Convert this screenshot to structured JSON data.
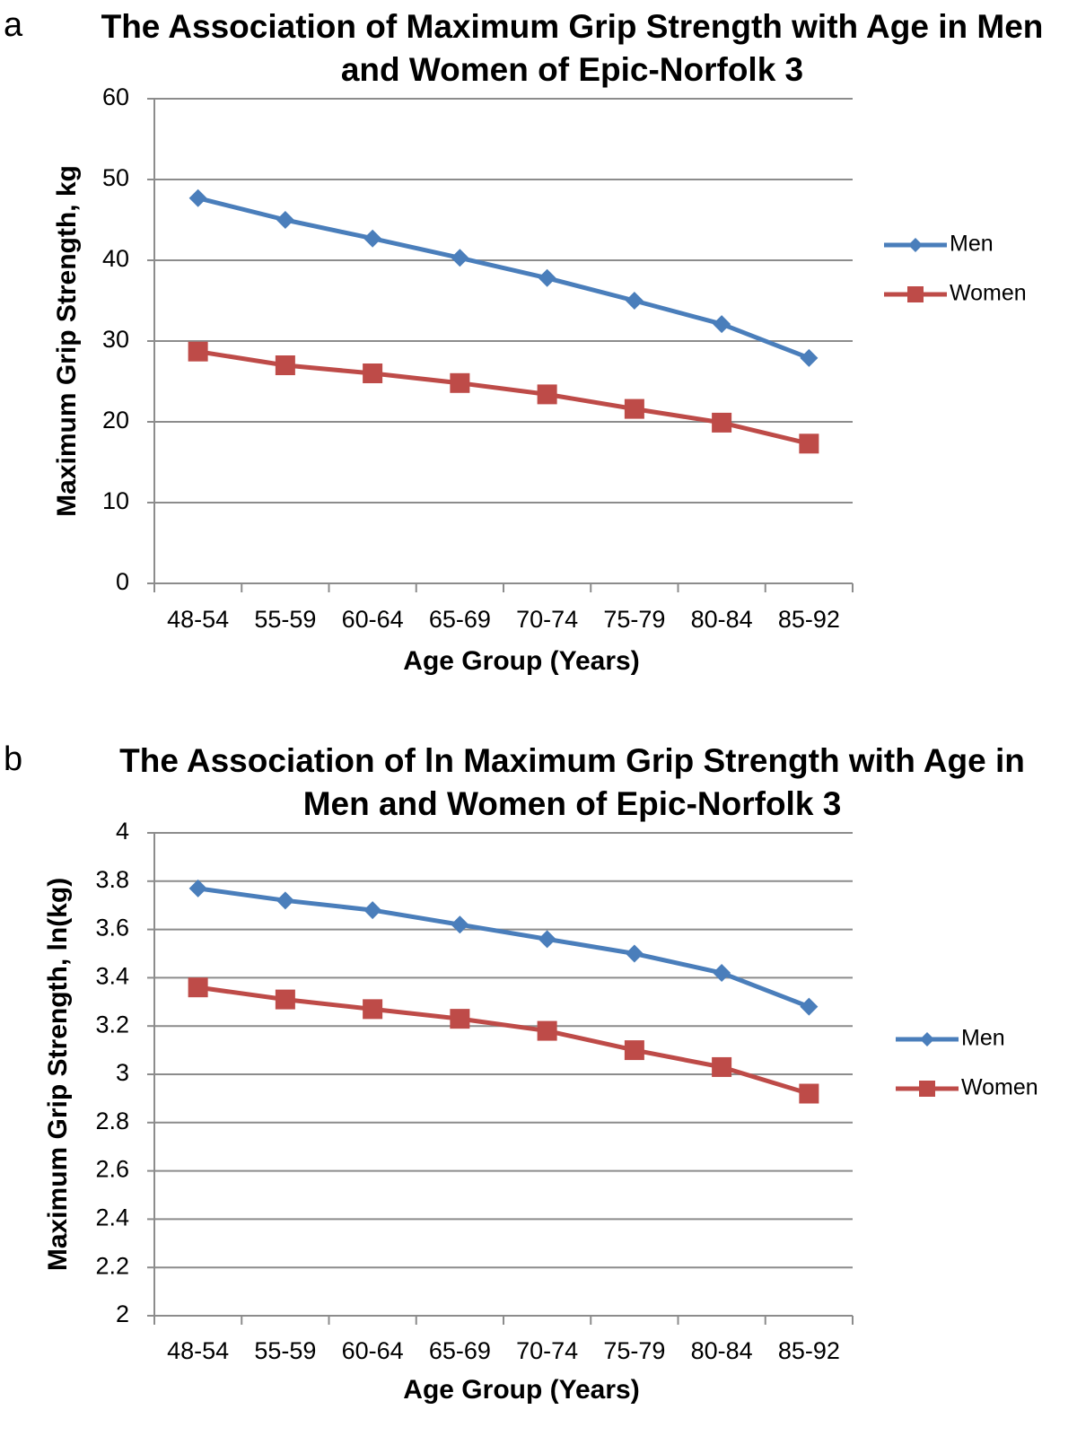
{
  "chart_data": [
    {
      "type": "line",
      "panel": "a",
      "title": "The Association of Maximum Grip Strength with Age in Men and Women of Epic-Norfolk  3",
      "x_label": "Age Group (Years)",
      "y_label": "Maximum Grip Strength, kg",
      "categories": [
        "48-54",
        "55-59",
        "60-64",
        "65-69",
        "70-74",
        "75-79",
        "80-84",
        "85-92"
      ],
      "series": [
        {
          "name": "Men",
          "color": "#4a7ebb",
          "marker": "diamond",
          "values": [
            47.7,
            45.0,
            42.7,
            40.3,
            37.8,
            35.0,
            32.1,
            27.9
          ]
        },
        {
          "name": "Women",
          "color": "#be4b48",
          "marker": "square",
          "values": [
            28.7,
            27.0,
            26.0,
            24.8,
            23.4,
            21.6,
            19.9,
            17.3
          ]
        }
      ],
      "ylim": [
        0,
        60
      ],
      "yticks": [
        0,
        10,
        20,
        30,
        40,
        50,
        60
      ],
      "grid": true,
      "legend": "right"
    },
    {
      "type": "line",
      "panel": "b",
      "title": "The Association of ln Maximum Grip Strength with Age in Men and Women of Epic-Norfolk  3",
      "x_label": "Age Group (Years)",
      "y_label": "Maximum Grip Strength, ln(kg)",
      "categories": [
        "48-54",
        "55-59",
        "60-64",
        "65-69",
        "70-74",
        "75-79",
        "80-84",
        "85-92"
      ],
      "series": [
        {
          "name": "Men",
          "color": "#4a7ebb",
          "marker": "diamond",
          "values": [
            3.77,
            3.72,
            3.68,
            3.62,
            3.56,
            3.5,
            3.42,
            3.28
          ]
        },
        {
          "name": "Women",
          "color": "#be4b48",
          "marker": "square",
          "values": [
            3.36,
            3.31,
            3.27,
            3.23,
            3.18,
            3.1,
            3.03,
            2.92
          ]
        }
      ],
      "ylim": [
        2,
        4
      ],
      "yticks": [
        2,
        2.2,
        2.4,
        2.6,
        2.8,
        3,
        3.2,
        3.4,
        3.6,
        3.8,
        4
      ],
      "grid": true,
      "legend": "right"
    }
  ]
}
